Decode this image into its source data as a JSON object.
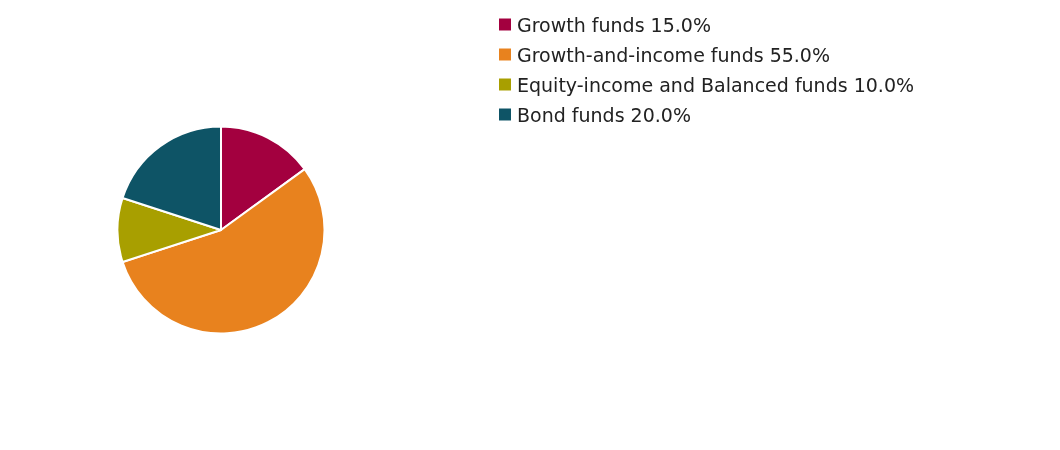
{
  "chart_data": {
    "type": "pie",
    "categories": [
      "Growth funds",
      "Growth-and-income funds",
      "Equity-income and Balanced funds",
      "Bond funds"
    ],
    "values": [
      15,
      55,
      10,
      20
    ],
    "value_labels": [
      "15.0%",
      "55.0%",
      "10.0%",
      "20.0%"
    ],
    "colors": [
      "#a3003f",
      "#e8821e",
      "#a89f00",
      "#0e5466"
    ],
    "legend": "top right"
  }
}
